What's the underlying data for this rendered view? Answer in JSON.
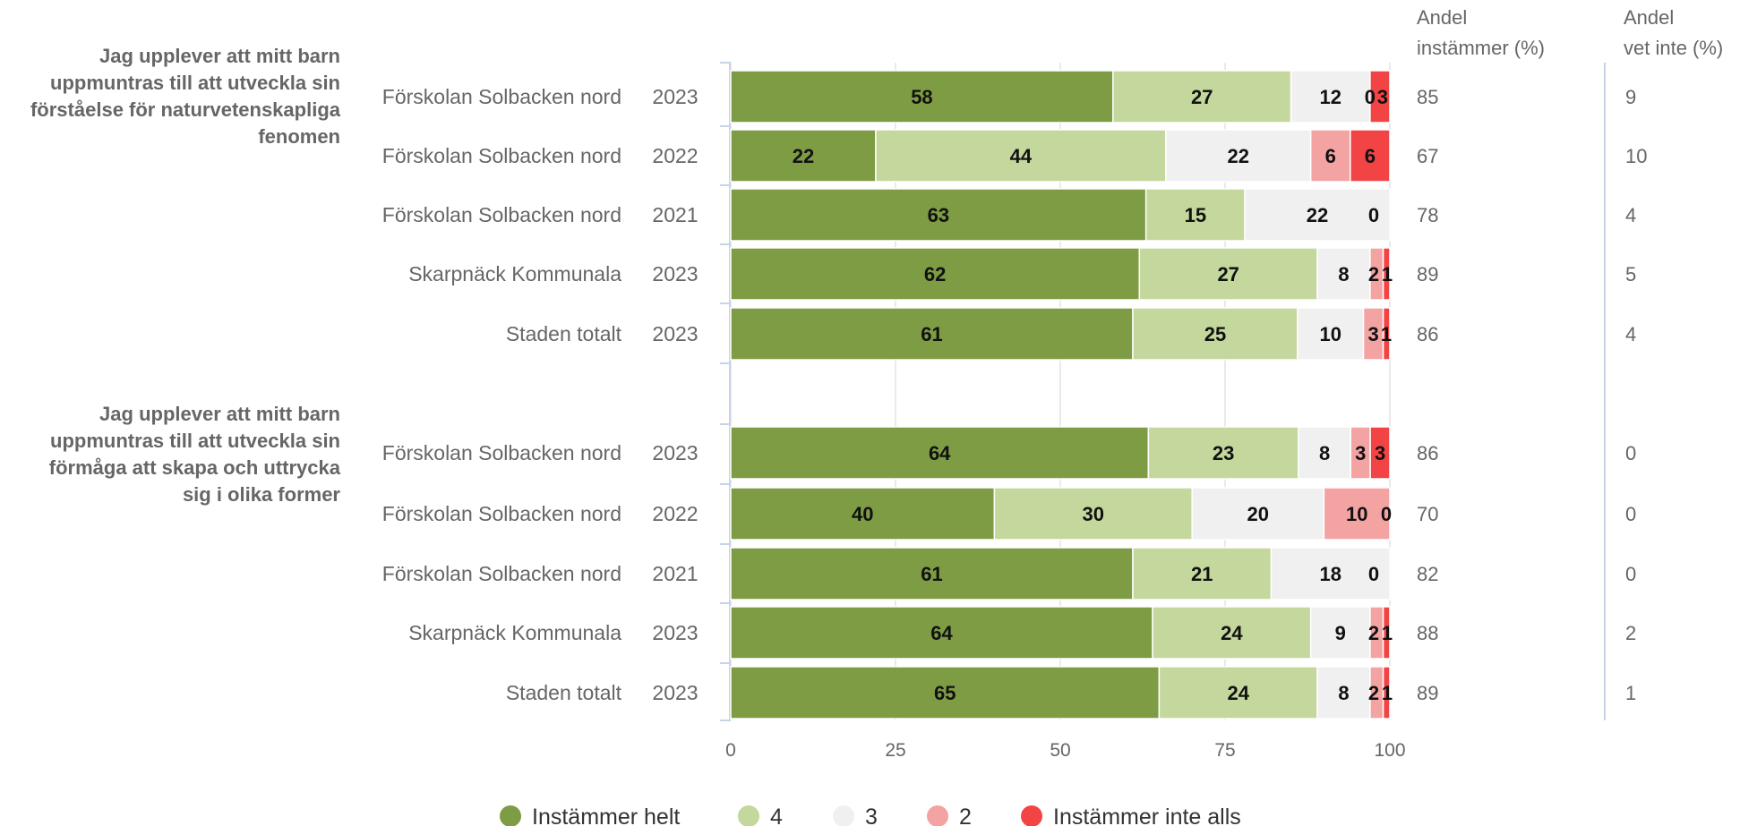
{
  "chart_data": {
    "type": "bar",
    "orientation": "horizontal",
    "stacked": true,
    "xlim": [
      0,
      100
    ],
    "x_ticks": [
      "0",
      "25",
      "50",
      "75",
      "100"
    ],
    "grid": true,
    "legend_position": "bottom",
    "column_headers": {
      "agree": [
        "Andel",
        "instämmer (%)"
      ],
      "dont_know": [
        "Andel",
        "vet inte (%)"
      ]
    },
    "series": [
      {
        "name": "Instämmer helt",
        "color": "#7e9c44"
      },
      {
        "name": "4",
        "color": "#c4d79c"
      },
      {
        "name": "3",
        "color": "#f0f0f0"
      },
      {
        "name": "2",
        "color": "#f4a3a3"
      },
      {
        "name": "Instämmer inte alls",
        "color": "#f24444"
      }
    ],
    "groups": [
      {
        "question": [
          "Jag upplever att mitt barn",
          "uppmuntras till att utveckla sin",
          "förståelse för naturvetenskapliga",
          "fenomen"
        ],
        "rows": [
          {
            "unit": "Förskolan Solbacken nord",
            "year": "2023",
            "values": [
              58,
              27,
              12,
              0,
              3
            ],
            "labels": [
              "58",
              "27",
              "12",
              "0",
              "3"
            ],
            "agree": "85",
            "dont_know": "9"
          },
          {
            "unit": "Förskolan Solbacken nord",
            "year": "2022",
            "values": [
              22,
              44,
              22,
              6,
              6
            ],
            "labels": [
              "22",
              "44",
              "22",
              "6",
              "6"
            ],
            "agree": "67",
            "dont_know": "10"
          },
          {
            "unit": "Förskolan Solbacken nord",
            "year": "2021",
            "values": [
              63,
              15,
              22,
              0,
              0
            ],
            "labels": [
              "63",
              "15",
              "22",
              "0",
              ""
            ],
            "agree": "78",
            "dont_know": "4"
          },
          {
            "unit": "Skarpnäck Kommunala",
            "year": "2023",
            "values": [
              62,
              27,
              8,
              2,
              1
            ],
            "labels": [
              "62",
              "27",
              "8",
              "2",
              "1"
            ],
            "agree": "89",
            "dont_know": "5"
          },
          {
            "unit": "Staden totalt",
            "year": "2023",
            "values": [
              61,
              25,
              10,
              3,
              1
            ],
            "labels": [
              "61",
              "25",
              "10",
              "3",
              "1"
            ],
            "agree": "86",
            "dont_know": "4"
          }
        ]
      },
      {
        "question": [
          "Jag upplever att mitt barn",
          "uppmuntras till att utveckla sin",
          "förmåga att skapa och uttrycka",
          "sig i olika former"
        ],
        "rows": [
          {
            "unit": "Förskolan Solbacken nord",
            "year": "2023",
            "values": [
              64,
              23,
              8,
              3,
              3
            ],
            "labels": [
              "64",
              "23",
              "8",
              "3",
              "3"
            ],
            "agree": "86",
            "dont_know": "0"
          },
          {
            "unit": "Förskolan Solbacken nord",
            "year": "2022",
            "values": [
              40,
              30,
              20,
              10,
              0
            ],
            "labels": [
              "40",
              "30",
              "20",
              "10",
              "0"
            ],
            "agree": "70",
            "dont_know": "0"
          },
          {
            "unit": "Förskolan Solbacken nord",
            "year": "2021",
            "values": [
              61,
              21,
              18,
              0,
              0
            ],
            "labels": [
              "61",
              "21",
              "18",
              "0",
              ""
            ],
            "agree": "82",
            "dont_know": "0"
          },
          {
            "unit": "Skarpnäck Kommunala",
            "year": "2023",
            "values": [
              64,
              24,
              9,
              2,
              1
            ],
            "labels": [
              "64",
              "24",
              "9",
              "2",
              "1"
            ],
            "agree": "88",
            "dont_know": "2"
          },
          {
            "unit": "Staden totalt",
            "year": "2023",
            "values": [
              65,
              24,
              8,
              2,
              1
            ],
            "labels": [
              "65",
              "24",
              "8",
              "2",
              "1"
            ],
            "agree": "89",
            "dont_know": "1"
          }
        ]
      }
    ]
  }
}
